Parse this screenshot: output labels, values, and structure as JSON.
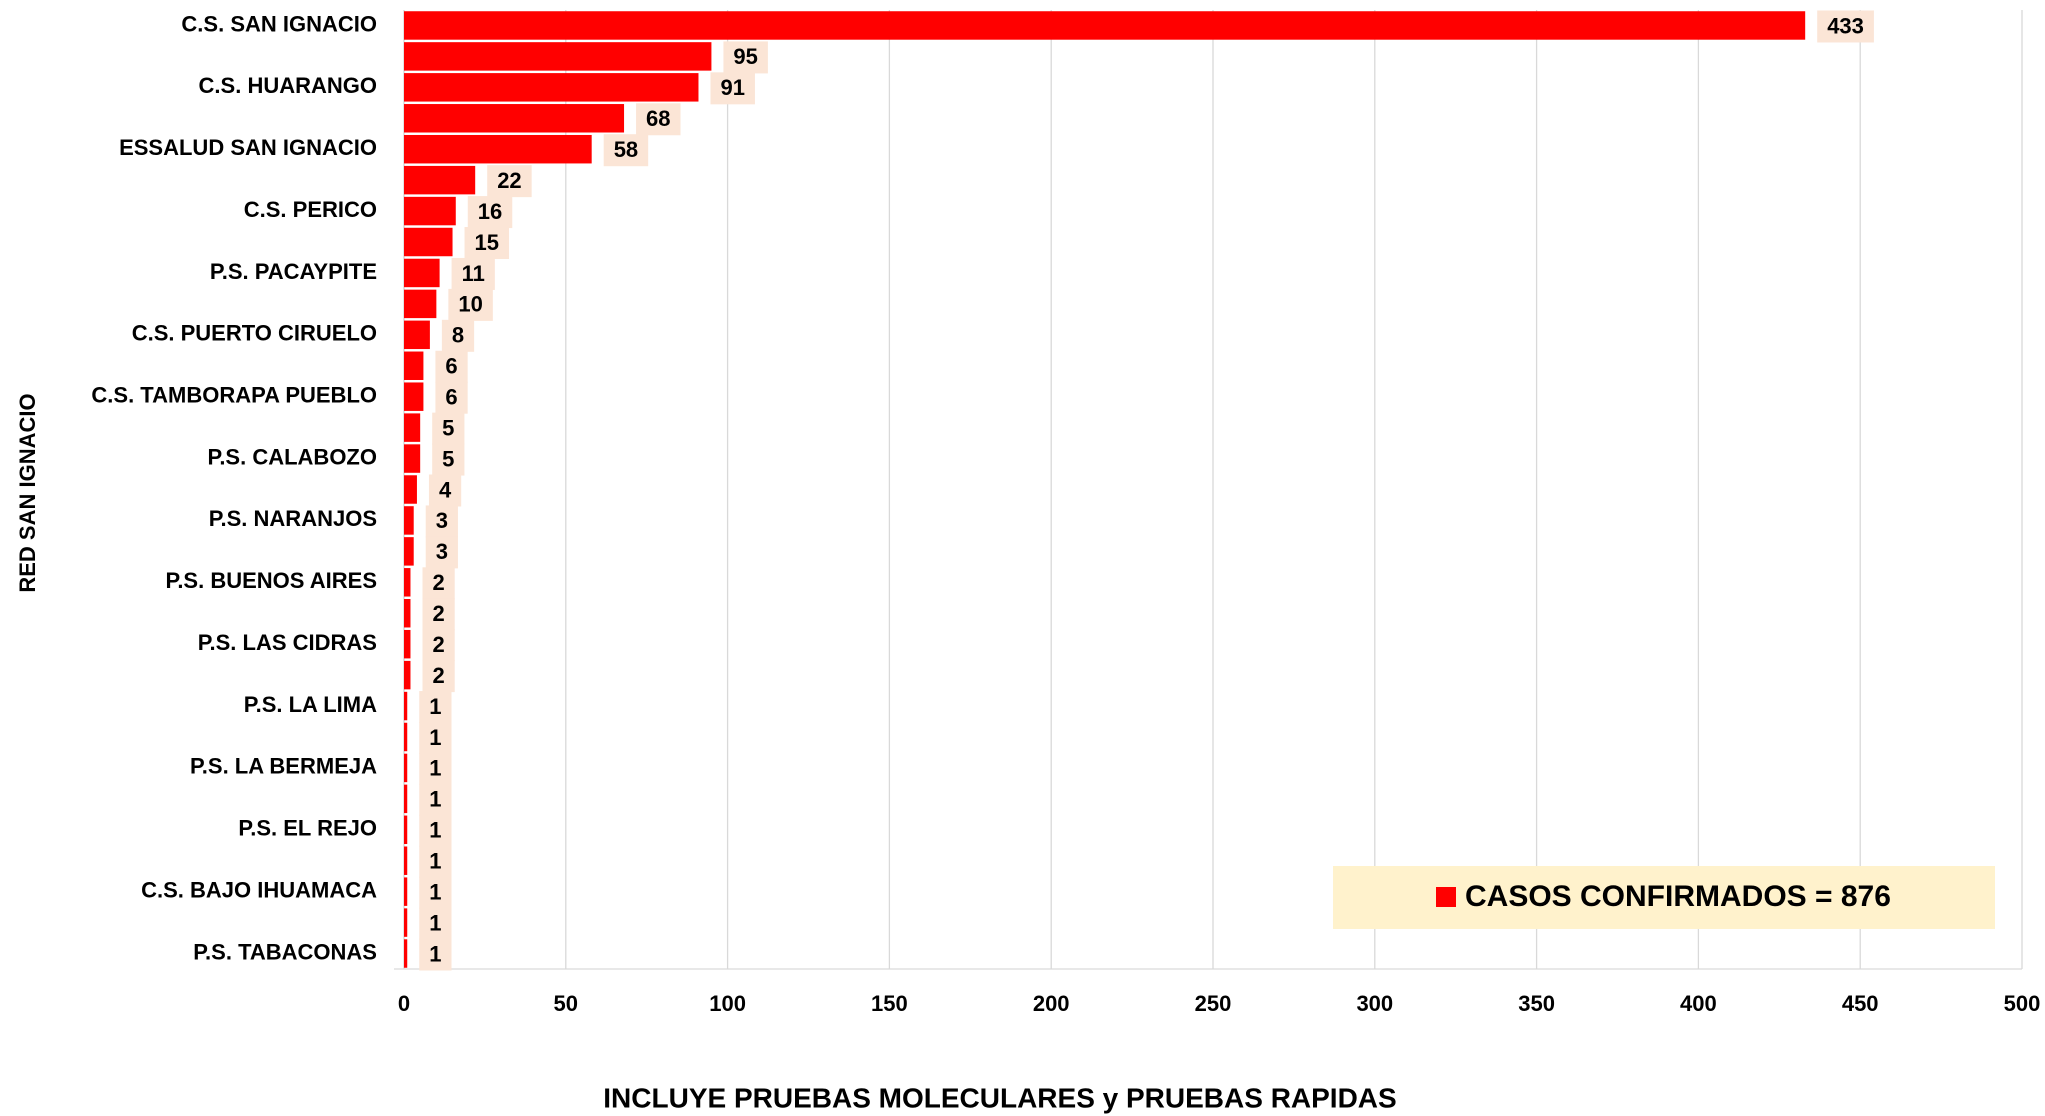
{
  "chart_data": {
    "type": "barh",
    "x_label": "INCLUYE PRUEBAS MOLECULARES y PRUEBAS RAPIDAS",
    "y_label": "RED SAN IGNACIO",
    "categories": [
      "C.S. SAN IGNACIO",
      null,
      "C.S. HUARANGO",
      null,
      "ESSALUD SAN IGNACIO",
      null,
      "C.S. PERICO",
      null,
      "P.S. PACAYPITE",
      null,
      "C.S. PUERTO CIRUELO",
      null,
      "C.S. TAMBORAPA PUEBLO",
      null,
      "P.S. CALABOZO",
      null,
      "P.S. NARANJOS",
      null,
      "P.S. BUENOS AIRES",
      null,
      "P.S. LAS CIDRAS",
      null,
      "P.S. LA LIMA",
      null,
      "P.S. LA BERMEJA",
      null,
      "P.S. EL REJO",
      null,
      "C.S. BAJO IHUAMACA",
      null,
      "P.S. TABACONAS"
    ],
    "series": [
      {
        "name": "CASOS CONFIRMADOS = 876",
        "color": "#ff0000",
        "values": [
          433,
          95,
          91,
          68,
          58,
          22,
          16,
          15,
          11,
          10,
          8,
          6,
          6,
          5,
          5,
          4,
          3,
          3,
          2,
          2,
          2,
          2,
          1,
          1,
          1,
          1,
          1,
          1,
          1,
          1,
          1
        ]
      }
    ],
    "xlim": [
      0,
      500
    ],
    "xticks": [
      0,
      50,
      100,
      150,
      200,
      250,
      300,
      350,
      400,
      450,
      500
    ],
    "grid": true,
    "legend": "lower right"
  }
}
